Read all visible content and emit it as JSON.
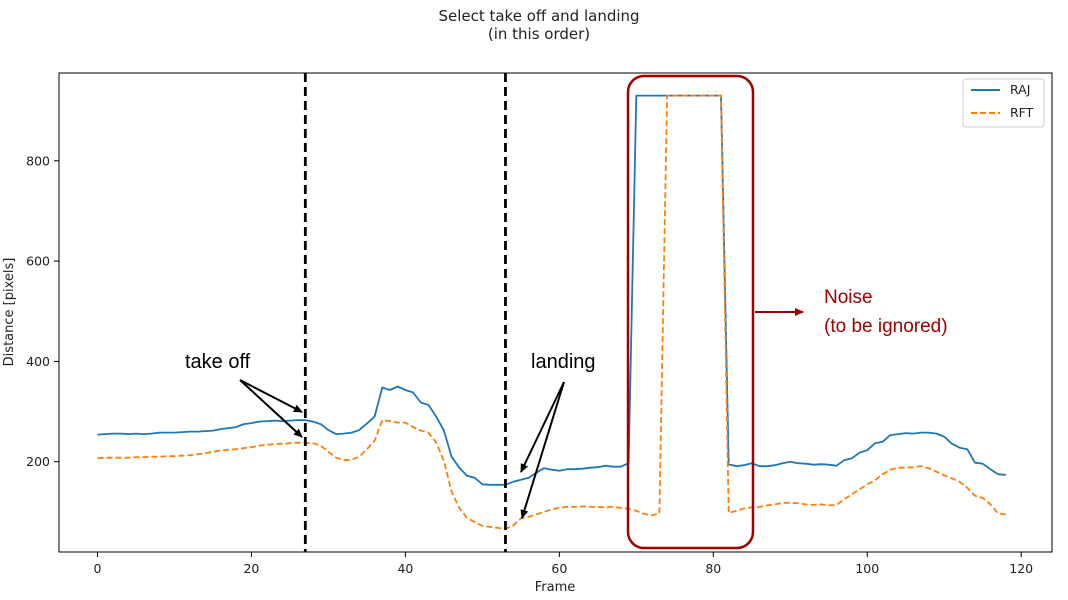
{
  "chart_data": {
    "type": "line",
    "title": "Select take off and landing",
    "subtitle": "(in this order)",
    "xlabel": "Frame",
    "ylabel": "Distance [pixels]",
    "xlim": [
      -5,
      124
    ],
    "ylim": [
      20,
      975
    ],
    "xticks": [
      0,
      20,
      40,
      60,
      80,
      100,
      120
    ],
    "yticks": [
      200,
      400,
      600,
      800
    ],
    "grid": false,
    "legend_position": "top-right",
    "series": [
      {
        "name": "RAJ",
        "color": "#1f77b4",
        "style": "solid",
        "x": [
          0,
          1,
          2,
          3,
          4,
          5,
          6,
          7,
          8,
          9,
          10,
          11,
          12,
          13,
          14,
          15,
          16,
          17,
          18,
          19,
          20,
          21,
          22,
          23,
          24,
          25,
          26,
          27,
          28,
          29,
          30,
          31,
          32,
          33,
          34,
          35,
          36,
          37,
          38,
          39,
          40,
          41,
          42,
          43,
          44,
          45,
          46,
          47,
          48,
          49,
          50,
          51,
          52,
          53,
          54,
          55,
          56,
          57,
          58,
          59,
          60,
          61,
          62,
          63,
          64,
          65,
          66,
          67,
          68,
          69,
          70,
          71,
          72,
          73,
          74,
          75,
          76,
          77,
          78,
          79,
          80,
          81,
          82,
          83,
          84,
          85,
          86,
          87,
          88,
          89,
          90,
          91,
          92,
          93,
          94,
          95,
          96,
          97,
          98,
          99,
          100,
          101,
          102,
          103,
          104,
          105,
          106,
          107,
          108,
          109,
          110,
          111,
          112,
          113,
          114,
          115,
          116,
          117,
          118
        ],
        "y": [
          254,
          255,
          256,
          256,
          255,
          256,
          255,
          256,
          258,
          258,
          258,
          259,
          260,
          260,
          261,
          262,
          265,
          267,
          269,
          275,
          277,
          280,
          281,
          282,
          281,
          282,
          283,
          283,
          280,
          275,
          263,
          255,
          256,
          258,
          263,
          276,
          290,
          348,
          343,
          350,
          343,
          338,
          318,
          313,
          290,
          262,
          210,
          188,
          172,
          168,
          155,
          154,
          154,
          154,
          160,
          164,
          168,
          178,
          187,
          184,
          182,
          185,
          185,
          186,
          188,
          189,
          192,
          190,
          190,
          197,
          930,
          930,
          930,
          930,
          930,
          930,
          930,
          930,
          930,
          930,
          930,
          930,
          195,
          191,
          193,
          197,
          191,
          191,
          193,
          197,
          200,
          197,
          196,
          194,
          195,
          194,
          192,
          203,
          207,
          218,
          223,
          237,
          240,
          253,
          255,
          257,
          256,
          258,
          258,
          256,
          250,
          236,
          228,
          225,
          198,
          196,
          185,
          175,
          174
        ]
      },
      {
        "name": "RFT",
        "color": "#ff7f0e",
        "style": "dashed",
        "x": [
          0,
          1,
          2,
          3,
          4,
          5,
          6,
          7,
          8,
          9,
          10,
          11,
          12,
          13,
          14,
          15,
          16,
          17,
          18,
          19,
          20,
          21,
          22,
          23,
          24,
          25,
          26,
          27,
          28,
          29,
          30,
          31,
          32,
          33,
          34,
          35,
          36,
          37,
          38,
          39,
          40,
          41,
          42,
          43,
          44,
          45,
          46,
          47,
          48,
          49,
          50,
          51,
          52,
          53,
          54,
          55,
          56,
          57,
          58,
          59,
          60,
          61,
          62,
          63,
          64,
          65,
          66,
          67,
          68,
          69,
          70,
          71,
          72,
          73,
          74,
          75,
          76,
          77,
          78,
          79,
          80,
          81,
          82,
          83,
          84,
          85,
          86,
          87,
          88,
          89,
          90,
          91,
          92,
          93,
          94,
          95,
          96,
          97,
          98,
          99,
          100,
          101,
          102,
          103,
          104,
          105,
          106,
          107,
          108,
          109,
          110,
          111,
          112,
          113,
          114,
          115,
          116,
          117,
          118
        ],
        "y": [
          207,
          208,
          208,
          208,
          208,
          209,
          209,
          210,
          210,
          211,
          211,
          212,
          213,
          215,
          217,
          220,
          222,
          224,
          225,
          227,
          229,
          232,
          234,
          235,
          236,
          237,
          238,
          238,
          237,
          232,
          220,
          208,
          203,
          204,
          210,
          225,
          242,
          283,
          281,
          278,
          278,
          269,
          262,
          258,
          238,
          202,
          140,
          108,
          88,
          80,
          72,
          70,
          68,
          66,
          73,
          87,
          90,
          95,
          100,
          105,
          108,
          110,
          110,
          111,
          110,
          110,
          109,
          110,
          108,
          106,
          102,
          96,
          93,
          97,
          930,
          930,
          930,
          930,
          930,
          930,
          930,
          930,
          98,
          102,
          107,
          109,
          110,
          113,
          115,
          118,
          118,
          117,
          115,
          114,
          115,
          113,
          114,
          125,
          135,
          145,
          155,
          163,
          175,
          184,
          188,
          188,
          189,
          191,
          187,
          180,
          173,
          167,
          160,
          148,
          132,
          128,
          115,
          97,
          95
        ]
      }
    ],
    "annotations": [
      {
        "text": "take off",
        "x": 27
      },
      {
        "text": "landing",
        "x": 53
      },
      {
        "text": "Noise",
        "color": "#a00000"
      },
      {
        "text": "(to be ignored)",
        "color": "#a00000"
      }
    ]
  }
}
